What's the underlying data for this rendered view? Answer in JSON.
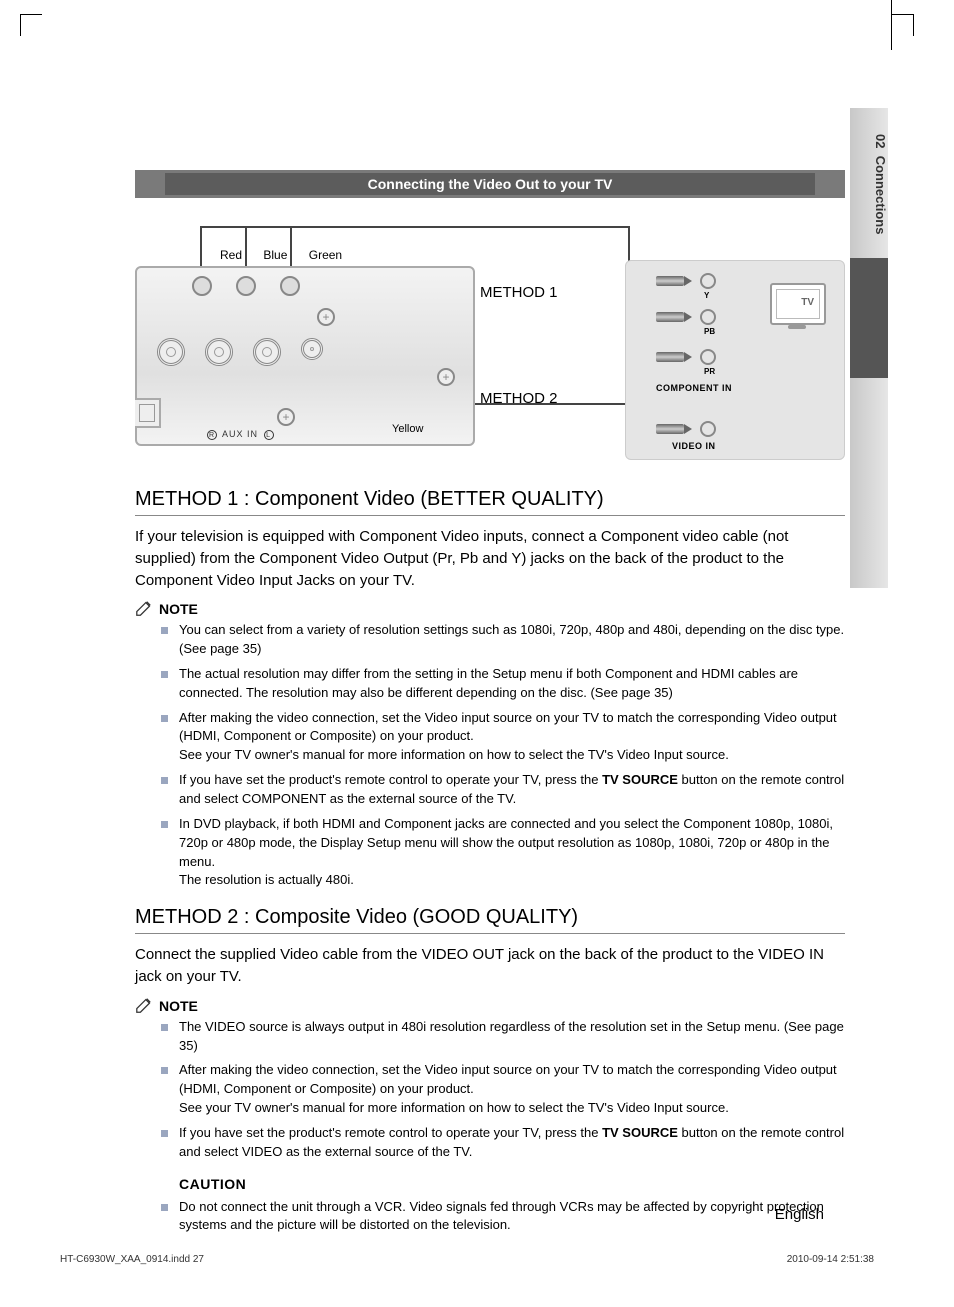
{
  "sideTab": {
    "chapter_num": "02",
    "chapter_name": "Connections"
  },
  "banner": "Connecting the Video Out to your TV",
  "diagram": {
    "color_red": "Red",
    "color_blue": "Blue",
    "color_green": "Green",
    "method1": "METHOD 1",
    "method2": "METHOD 2",
    "yellow": "Yellow",
    "aux_r": "R",
    "aux_text": "AUX IN",
    "aux_l": "L",
    "tv_label": "TV",
    "y_label": "Y",
    "pb_label": "PB",
    "pr_label": "PR",
    "component_in": "COMPONENT  IN",
    "video_in": "VIDEO  IN"
  },
  "method1": {
    "title": "METHOD 1 : Component Video (BETTER QUALITY)",
    "body": "If your television is equipped with Component Video inputs, connect a Component video cable (not supplied) from the Component Video Output (Pr, Pb and Y)  jacks on the back of the product to the Component Video Input Jacks on your TV.",
    "note_label": "NOTE",
    "notes": [
      "You can select from a variety of resolution settings such as 1080i, 720p, 480p and 480i, depending on the disc type. (See page 35)",
      "The actual resolution may differ from the setting in the Setup menu if both Component and HDMI cables are connected. The resolution may also be different depending on the disc. (See page 35)",
      "After making the video connection, set the Video input source on your TV to match the corresponding Video output (HDMI, Component or Composite) on your product.\nSee your TV owner's manual for more information on how to select the TV's Video Input source.",
      "If you have set the product's remote control to operate your TV, press the TV SOURCE button on the remote control and select COMPONENT as the external source of the TV.",
      "In DVD playback, if both HDMI and Component jacks are connected and you select the Component 1080p, 1080i, 720p or 480p mode, the Display Setup menu will show the output resolution as 1080p, 1080i, 720p or 480p in the menu.\nThe resolution is actually 480i."
    ]
  },
  "method2": {
    "title": "METHOD 2 : Composite Video (GOOD QUALITY)",
    "body": "Connect the supplied Video cable from the VIDEO OUT jack on the back of the product to the VIDEO IN jack on your TV.",
    "note_label": "NOTE",
    "notes": [
      "The VIDEO source is always output in 480i resolution regardless of the resolution set in the Setup menu. (See page 35)",
      "After making the video connection, set the Video input source on your TV to match the corresponding Video output (HDMI, Component or Composite) on your product.\nSee your TV owner's manual for more information on how to select the TV's Video Input source.",
      "If you have set the product's remote control to operate your TV, press the TV SOURCE button on the remote control and select VIDEO as the external source of the TV."
    ],
    "caution_label": "CAUTION",
    "caution_notes": [
      "Do not connect the unit through a VCR. Video signals fed through VCRs may be affected by copyright protection systems and the picture will be distorted on the television."
    ]
  },
  "footer": {
    "language": "English",
    "file": "HT-C6930W_XAA_0914.indd   27",
    "timestamp": "2010-09-14    2:51:38"
  },
  "tv_source_bold": "TV SOURCE"
}
